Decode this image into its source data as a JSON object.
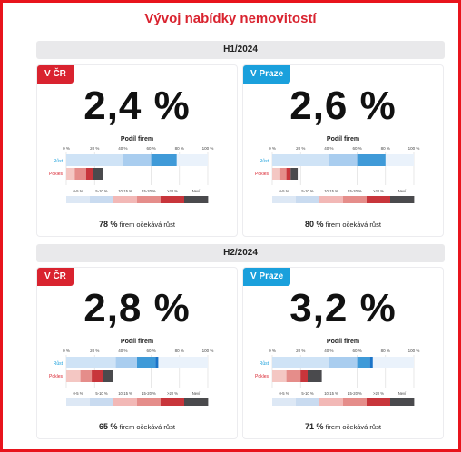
{
  "title": "Vývoj nabídky nemovitostí",
  "colors": {
    "red": "#d9232f",
    "blue": "#1aa0dc"
  },
  "axis_ticks": [
    "0 %",
    "20 %",
    "40 %",
    "60 %",
    "80 %",
    "100 %"
  ],
  "row_labels": {
    "grow": "Růst",
    "decline": "Pokles"
  },
  "scale_labels": [
    "0-5 %",
    "5-10 %",
    "10-15 %",
    "15-20 %",
    ">20 %",
    "Neví"
  ],
  "subtitle": "Podíl firem",
  "note_suffix": "firem očekává růst",
  "periods": [
    {
      "label": "H1/2024"
    },
    {
      "label": "H2/2024"
    }
  ],
  "chart_data": [
    {
      "type": "bar",
      "period": "H1/2024",
      "region": "V ČR",
      "value": "2,4 %",
      "note_value": "78 %",
      "xlim": [
        0,
        100
      ],
      "series": [
        {
          "name": "Růst",
          "segments": [
            40,
            20,
            18
          ]
        },
        {
          "name": "Pokles",
          "segments": [
            6,
            8,
            5,
            7
          ]
        }
      ]
    },
    {
      "type": "bar",
      "period": "H1/2024",
      "region": "V Praze",
      "value": "2,6 %",
      "note_value": "80 %",
      "xlim": [
        0,
        100
      ],
      "series": [
        {
          "name": "Růst",
          "segments": [
            40,
            20,
            20
          ]
        },
        {
          "name": "Pokles",
          "segments": [
            5,
            5,
            3,
            5
          ]
        }
      ]
    },
    {
      "type": "bar",
      "period": "H2/2024",
      "region": "V ČR",
      "value": "2,8 %",
      "note_value": "65 %",
      "xlim": [
        0,
        100
      ],
      "series": [
        {
          "name": "Růst",
          "segments": [
            35,
            15,
            13,
            2
          ]
        },
        {
          "name": "Pokles",
          "segments": [
            10,
            8,
            8,
            7
          ]
        }
      ]
    },
    {
      "type": "bar",
      "period": "H2/2024",
      "region": "V Praze",
      "value": "3,2 %",
      "note_value": "71 %",
      "xlim": [
        0,
        100
      ],
      "series": [
        {
          "name": "Růst",
          "segments": [
            40,
            20,
            9,
            2
          ]
        },
        {
          "name": "Pokles",
          "segments": [
            10,
            10,
            5,
            10
          ]
        }
      ]
    }
  ]
}
